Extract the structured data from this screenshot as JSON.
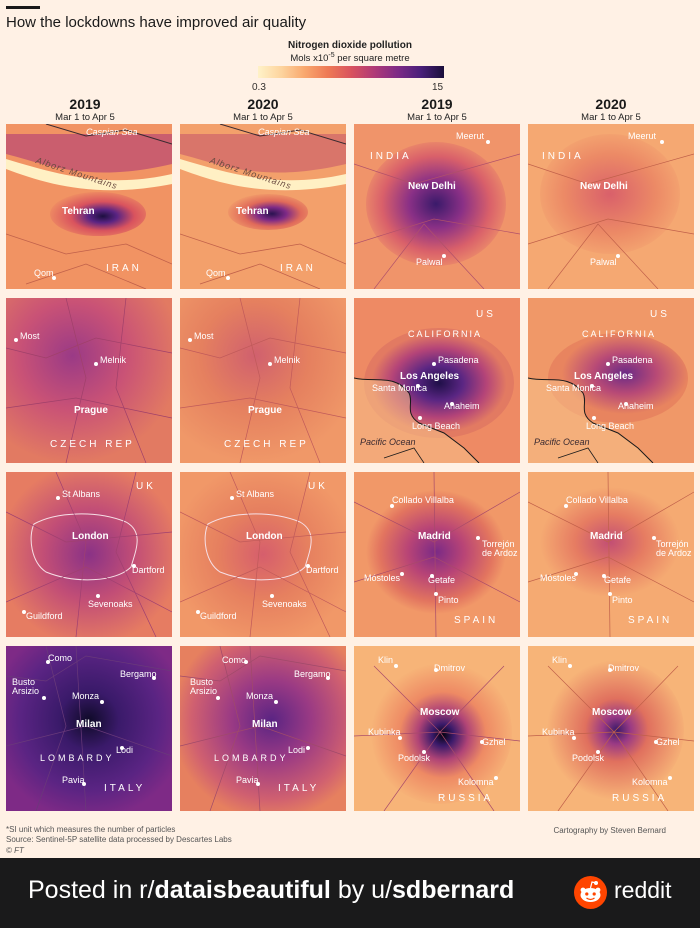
{
  "title": "How the lockdowns have improved air quality",
  "legend": {
    "title": "Nitrogen dioxide pollution",
    "unit_pre": "Mols x10",
    "unit_exp": "-5",
    "unit_post": " per square metre",
    "min": "0.3",
    "max": "15",
    "scale_colors": [
      "#fff2c8",
      "#f9a86e",
      "#d9535e",
      "#7e2a86",
      "#1a0e3a"
    ]
  },
  "columns": [
    {
      "year": "2019",
      "dates": "Mar 1 to Apr 5"
    },
    {
      "year": "2020",
      "dates": "Mar 1 to Apr 5"
    },
    {
      "year": "2019",
      "dates": "Mar 1 to Apr 5"
    },
    {
      "year": "2020",
      "dates": "Mar 1 to Apr 5"
    }
  ],
  "maps": {
    "tehran": {
      "city": "Tehran",
      "sea": "Caspian Sea",
      "mountains": "Alborz Mountains",
      "place": "Qom",
      "country": "IRAN"
    },
    "delhi": {
      "city": "New Delhi",
      "country": "INDIA",
      "places": [
        "Meerut",
        "Palwal"
      ]
    },
    "prague": {
      "city": "Prague",
      "country": "CZECH REP",
      "places": [
        "Most",
        "Melnik"
      ]
    },
    "la": {
      "city": "Los Angeles",
      "country": "US",
      "region": "CALIFORNIA",
      "sea": "Pacific Ocean",
      "places": [
        "Pasadena",
        "Santa\nMonica",
        "Anaheim",
        "Long Beach"
      ]
    },
    "london": {
      "city": "London",
      "country": "UK",
      "places": [
        "St Albans",
        "Dartford",
        "Sevenoaks",
        "Guildford"
      ]
    },
    "madrid": {
      "city": "Madrid",
      "country": "SPAIN",
      "places": [
        "Collado Villalba",
        "Torrejón\nde Ardoz",
        "Móstoles",
        "Getafe",
        "Pinto"
      ]
    },
    "milan": {
      "city": "Milan",
      "country": "ITALY",
      "region": "LOMBARDY",
      "places": [
        "Como",
        "Bergamo",
        "Busto\nArsizio",
        "Monza",
        "Lodi",
        "Pavia"
      ]
    },
    "moscow": {
      "city": "Moscow",
      "country": "RUSSIA",
      "places": [
        "Klin",
        "Dmitrov",
        "Kubinka",
        "Gzhel",
        "Podolsk",
        "Kolomna"
      ]
    }
  },
  "footnote": {
    "si": "*SI unit which measures the number of particles",
    "source": "Source: Sentinel-5P satellite data processed by Descartes Labs",
    "copyright": "© FT"
  },
  "credit": "Cartography by Steven Bernard",
  "footer": {
    "posted_in": "Posted in r/",
    "subreddit": "dataisbeautiful",
    "by": " by u/",
    "user": "sdbernard",
    "brand": "reddit"
  }
}
